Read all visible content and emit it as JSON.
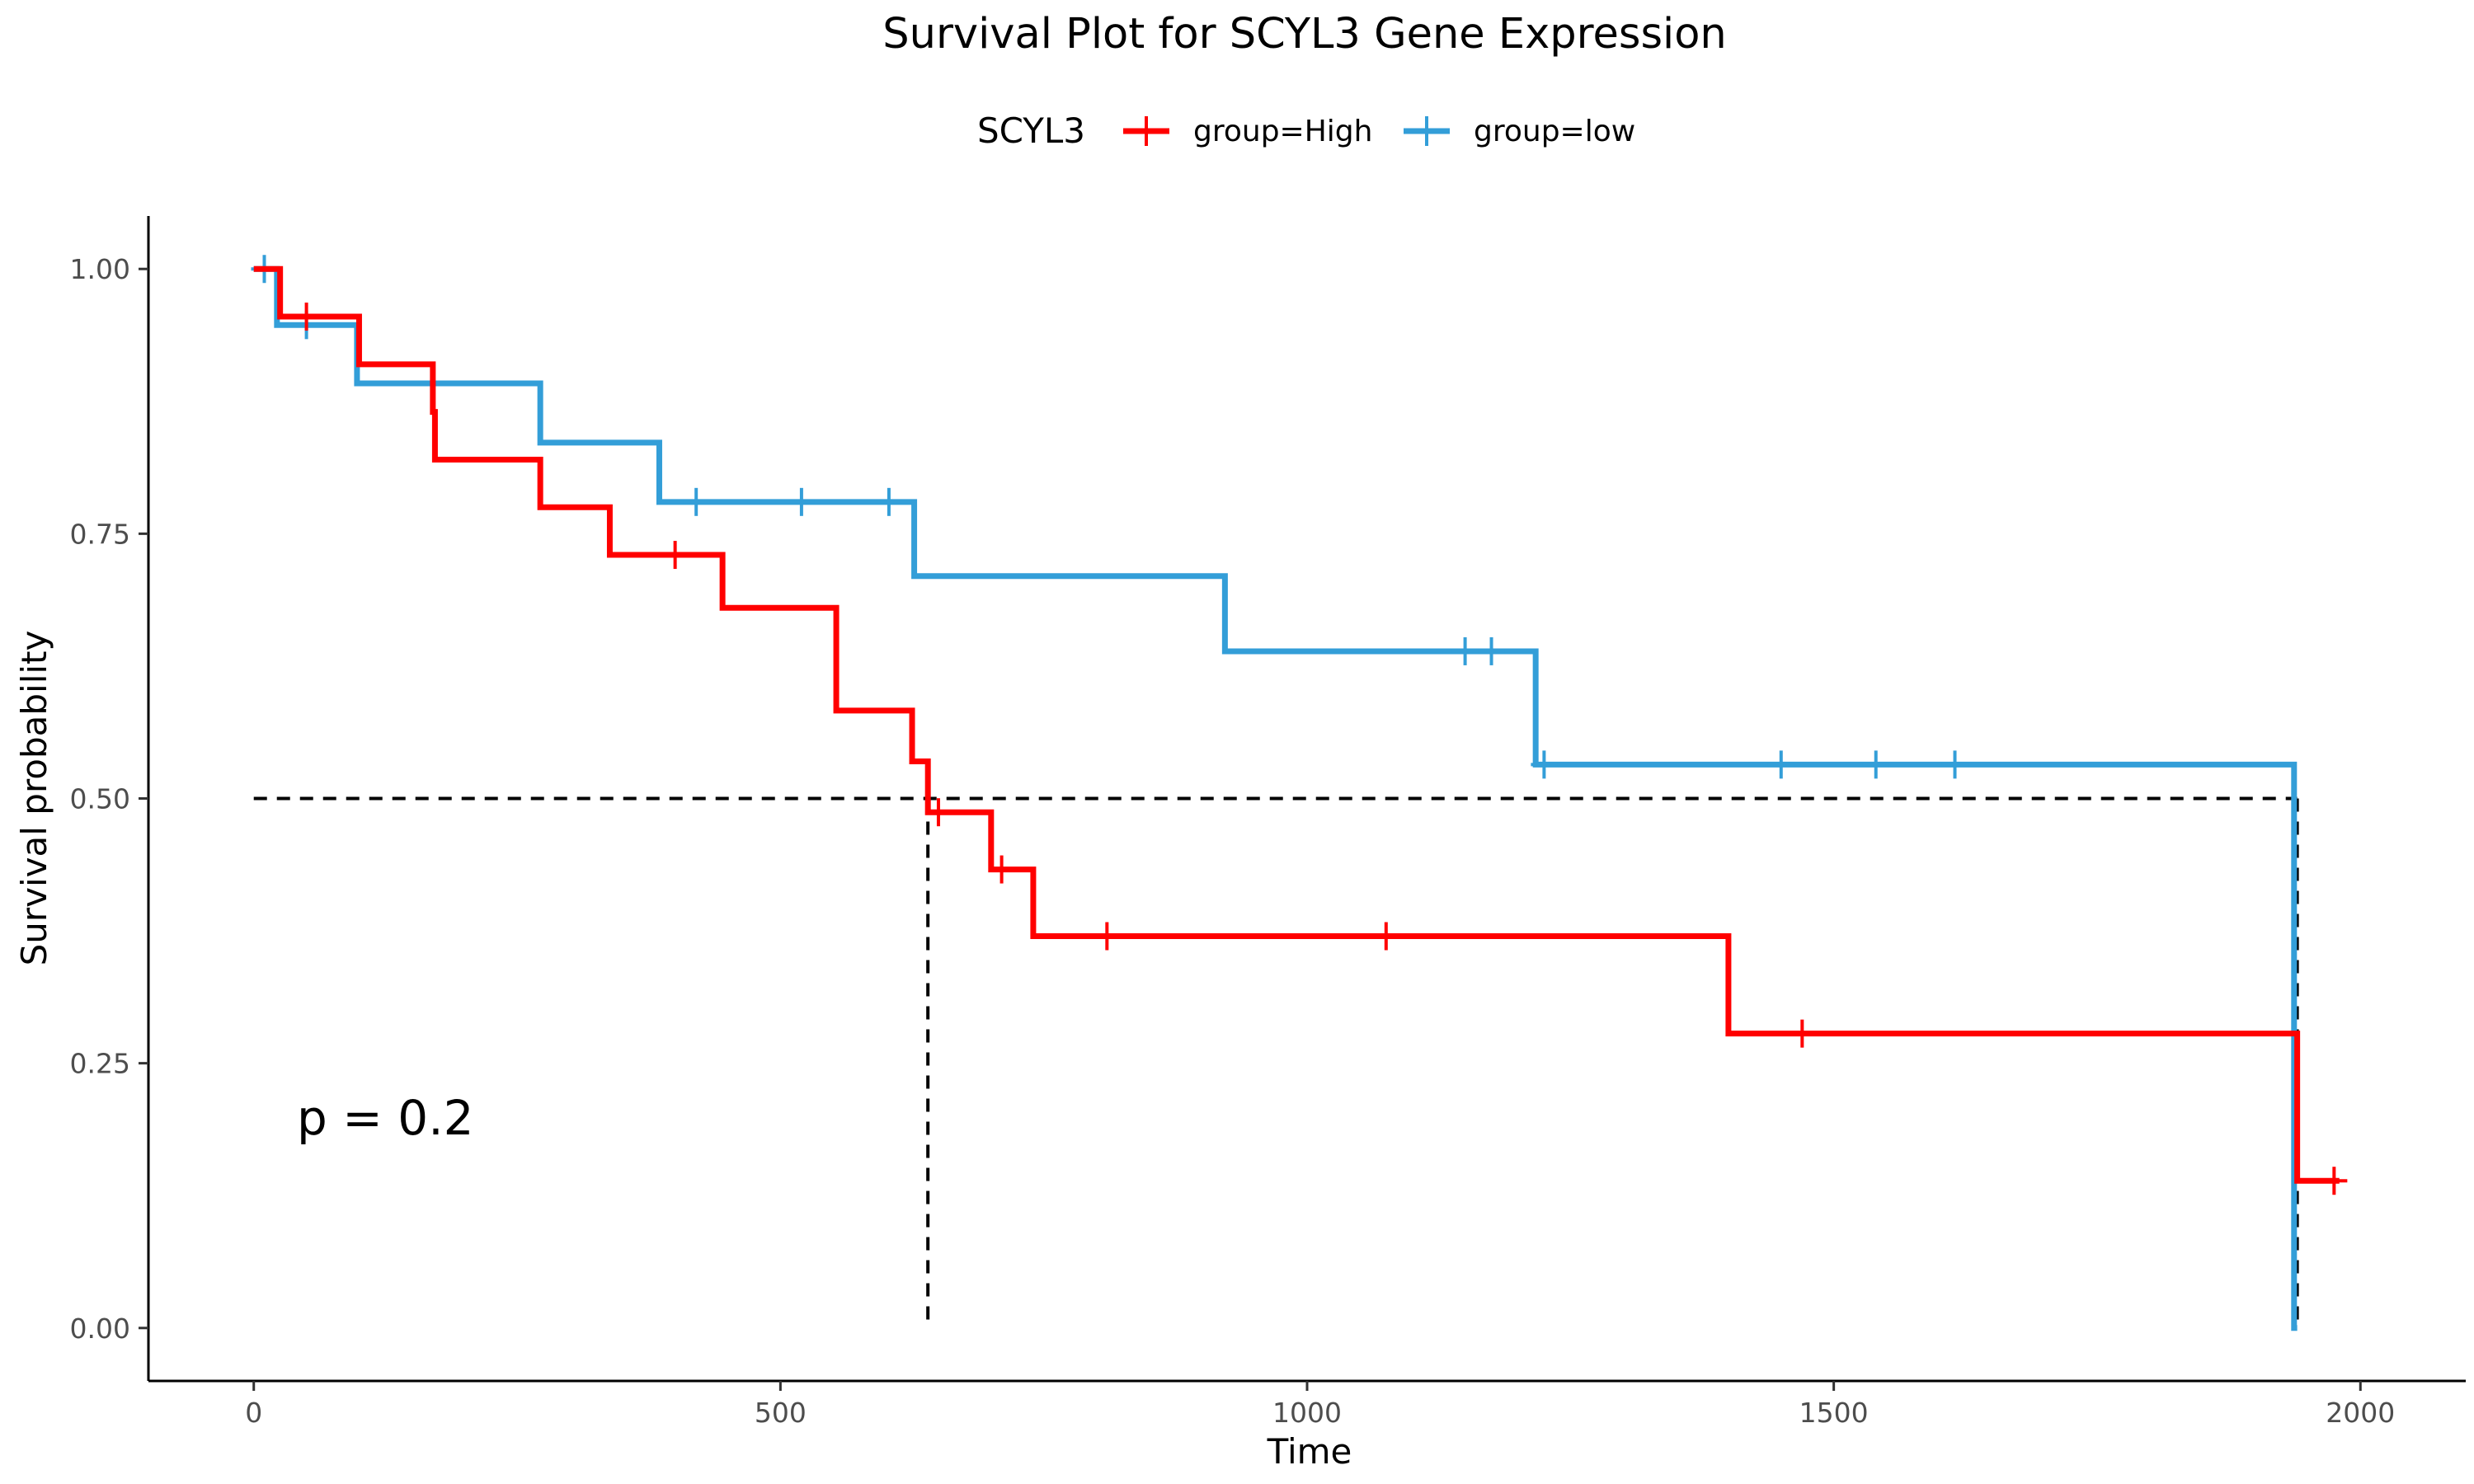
{
  "chart_data": {
    "type": "line",
    "subtype": "kaplan-meier-step",
    "title": "Survival Plot for SCYL3 Gene Expression",
    "xlabel": "Time",
    "ylabel": "Survival probability",
    "xlim": [
      -100,
      2100
    ],
    "ylim": [
      -0.05,
      1.05
    ],
    "x_ticks": [
      0,
      500,
      1000,
      1500,
      2000
    ],
    "x_tick_labels": [
      "0",
      "500",
      "1000",
      "1500",
      "2000"
    ],
    "y_ticks": [
      0,
      0.25,
      0.5,
      0.75,
      1.0
    ],
    "y_tick_labels": [
      "0.00",
      "0.25",
      "0.50",
      "0.75",
      "1.00"
    ],
    "grid": false,
    "legend": {
      "title": "SCYL3",
      "position": "top",
      "entries": [
        "group=High",
        "group=low"
      ]
    },
    "annotation": "p = 0.2",
    "median_reference": {
      "y": 0.5,
      "x_end": 1940,
      "medians": [
        640,
        1940
      ]
    },
    "series": [
      {
        "name": "group=High",
        "color": "#ff0000",
        "steps": [
          [
            0,
            1.0
          ],
          [
            25,
            0.955
          ],
          [
            100,
            0.91
          ],
          [
            170,
            0.865
          ],
          [
            172,
            0.82
          ],
          [
            272,
            0.775
          ],
          [
            338,
            0.73
          ],
          [
            445,
            0.68
          ],
          [
            553,
            0.583
          ],
          [
            625,
            0.535
          ],
          [
            640,
            0.487
          ],
          [
            700,
            0.433
          ],
          [
            740,
            0.37
          ],
          [
            1400,
            0.278
          ],
          [
            1940,
            0.139
          ],
          [
            1980,
            0.139
          ]
        ],
        "censored": [
          [
            50,
            0.955
          ],
          [
            400,
            0.73
          ],
          [
            650,
            0.487
          ],
          [
            710,
            0.433
          ],
          [
            810,
            0.37
          ],
          [
            1075,
            0.37
          ],
          [
            1470,
            0.278
          ],
          [
            1975,
            0.139
          ]
        ]
      },
      {
        "name": "group=low",
        "color": "#339ed8",
        "steps": [
          [
            0,
            1.0
          ],
          [
            22,
            0.947
          ],
          [
            98,
            0.892
          ],
          [
            272,
            0.836
          ],
          [
            385,
            0.78
          ],
          [
            627,
            0.71
          ],
          [
            922,
            0.639
          ],
          [
            1217,
            0.532
          ],
          [
            1937,
            0.0
          ],
          [
            1940,
            0.0
          ]
        ],
        "censored": [
          [
            10,
            1.0
          ],
          [
            50,
            0.947
          ],
          [
            420,
            0.78
          ],
          [
            520,
            0.78
          ],
          [
            603,
            0.78
          ],
          [
            1150,
            0.639
          ],
          [
            1175,
            0.639
          ],
          [
            1225,
            0.532
          ],
          [
            1450,
            0.532
          ],
          [
            1540,
            0.532
          ],
          [
            1615,
            0.532
          ]
        ]
      }
    ]
  }
}
